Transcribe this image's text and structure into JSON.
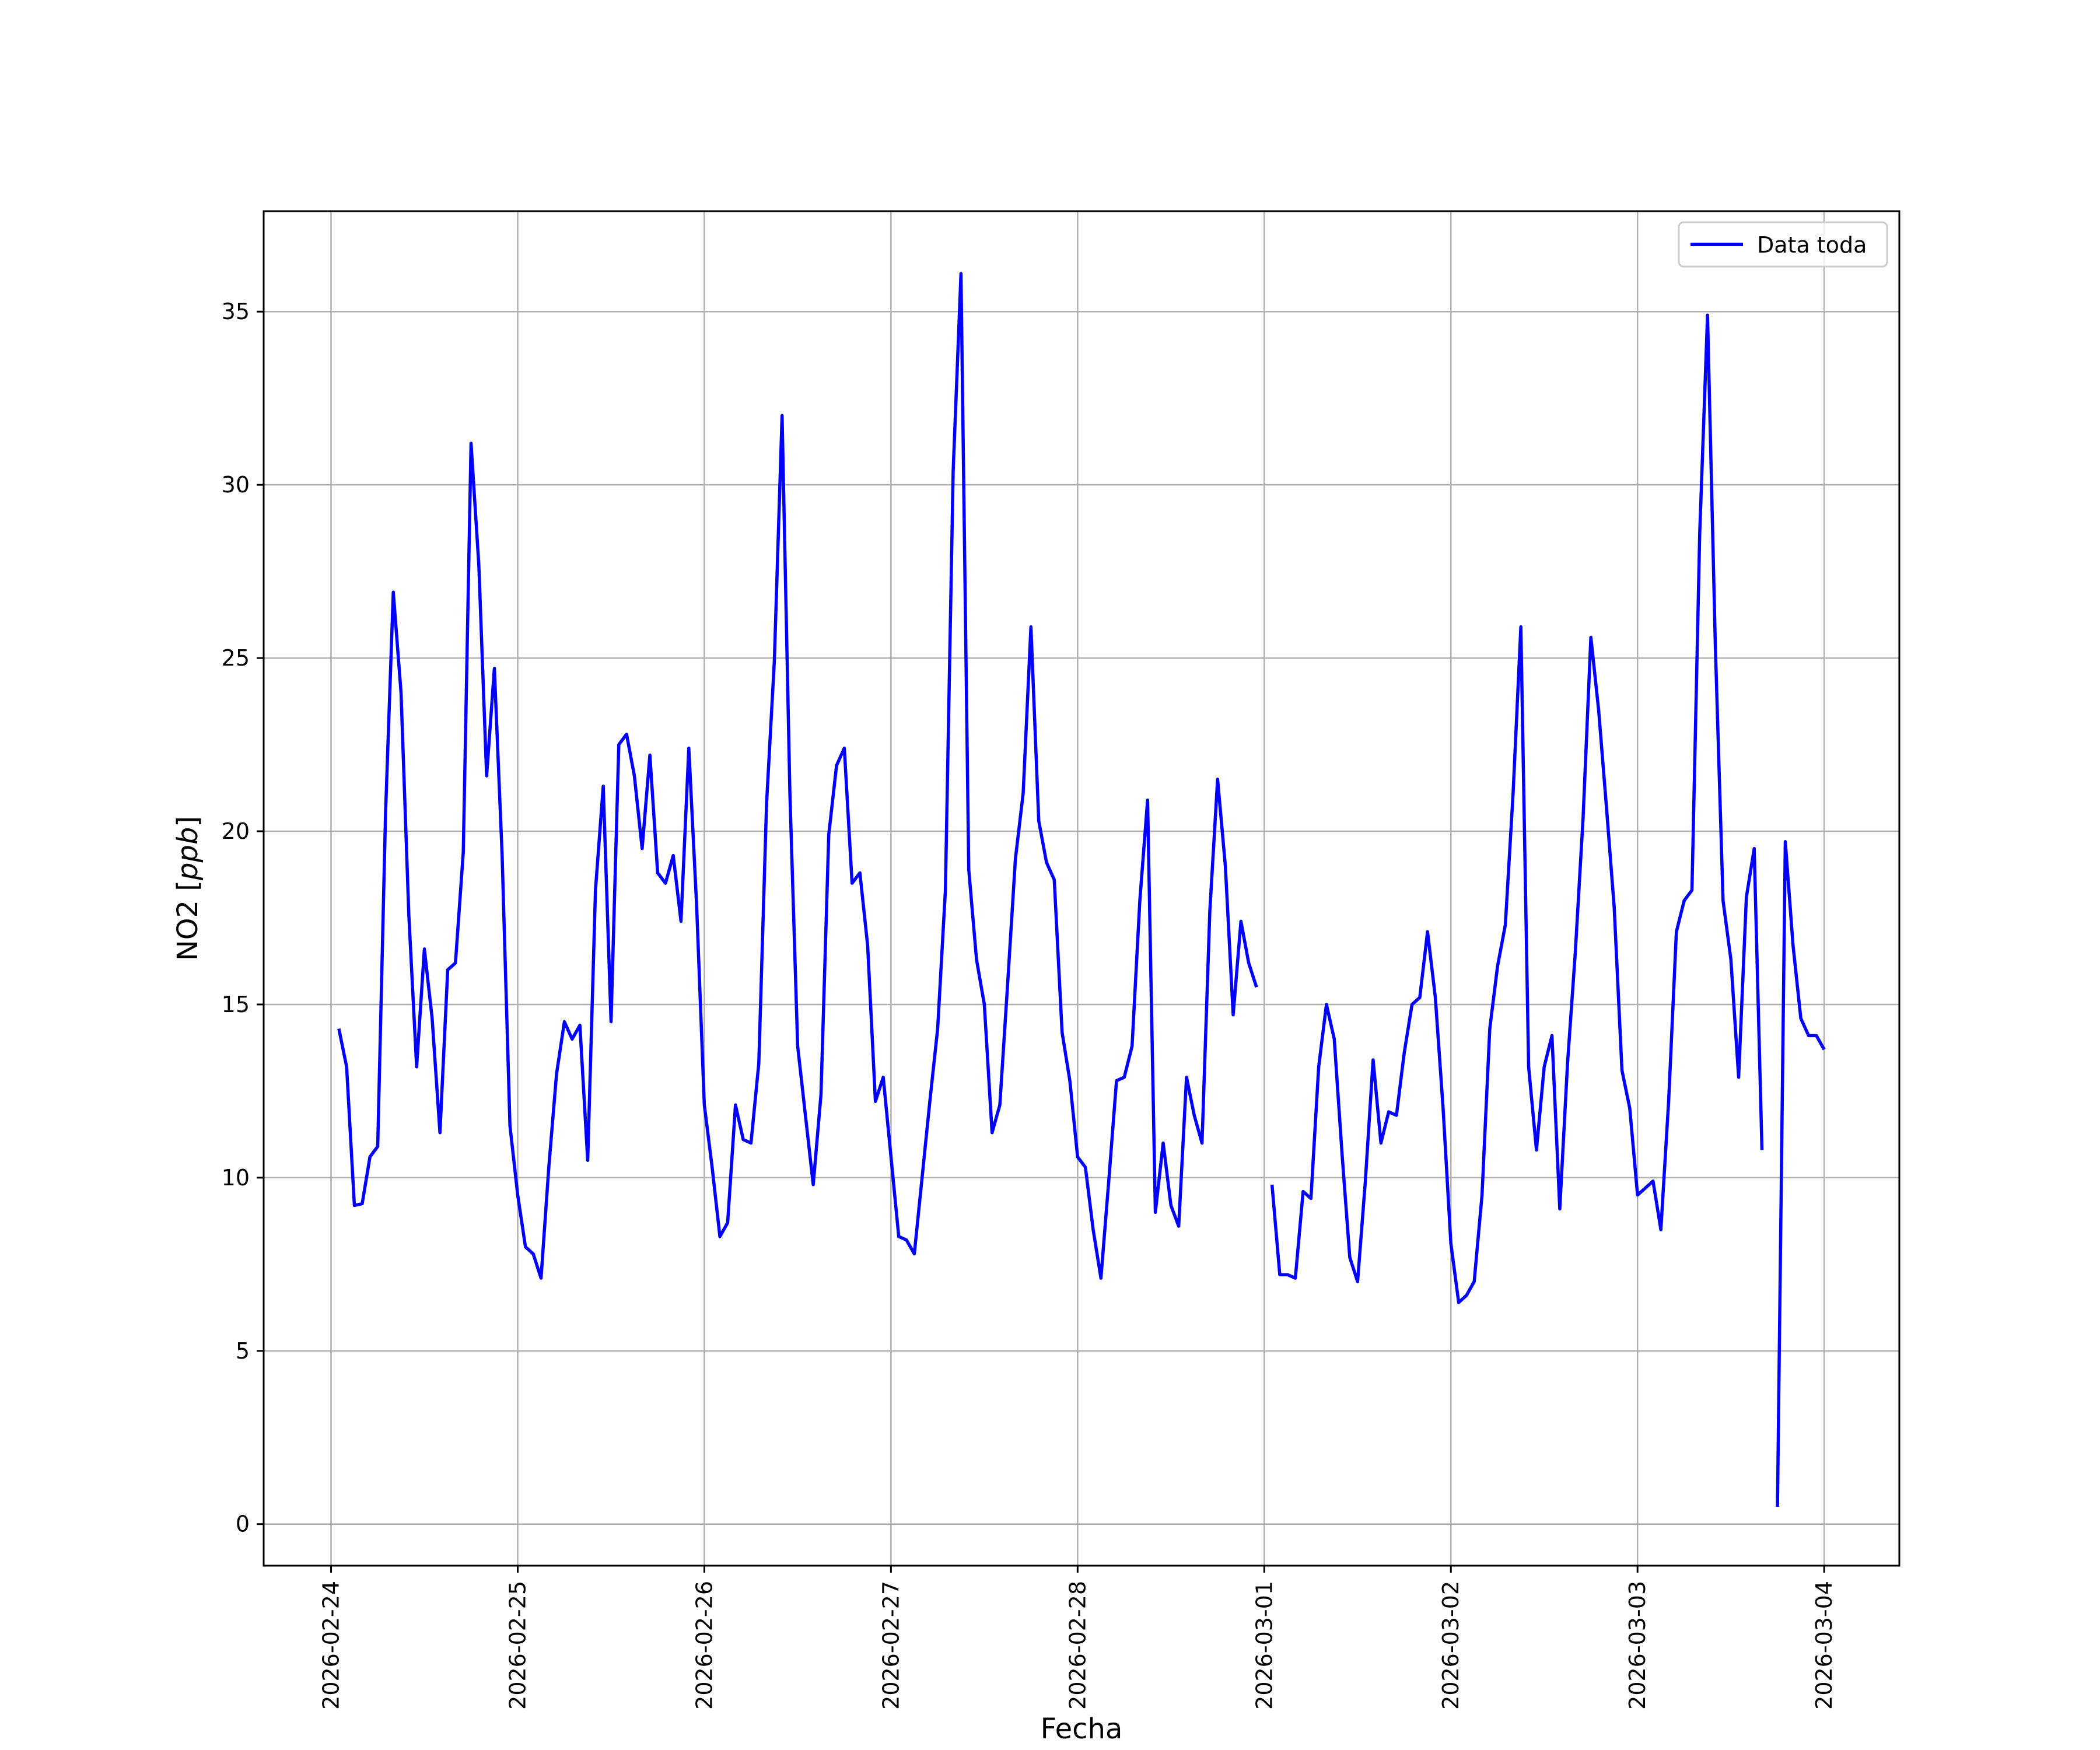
{
  "chart_data": {
    "type": "line",
    "title": "",
    "xlabel": "Fecha",
    "ylabel": "NO2 [ppb]",
    "ylabel_parts": {
      "plain": "NO2 [",
      "italic": "ppb",
      "close": "]"
    },
    "xlim": [
      "2026-02-23T15:20",
      "2026-03-04T09:40"
    ],
    "ylim": [
      -1.2,
      37.9
    ],
    "yticks": [
      0,
      5,
      10,
      15,
      20,
      25,
      30,
      35
    ],
    "xticks": [
      "2026-02-24",
      "2026-02-25",
      "2026-02-26",
      "2026-02-27",
      "2026-02-28",
      "2026-03-01",
      "2026-03-02",
      "2026-03-03",
      "2026-03-04"
    ],
    "grid": true,
    "legend_position": "top-right",
    "series": [
      {
        "name": "Data toda",
        "color": "#0000ff",
        "sampling": "hourly",
        "days": [
          {
            "date": "2026-02-24",
            "values": [
              null,
              14.3,
              13.2,
              9.2,
              9.25,
              10.6,
              10.9,
              20.5,
              26.9,
              24.0,
              17.6,
              13.2,
              16.6,
              14.6,
              11.3,
              16.0,
              16.2,
              19.4,
              31.2,
              27.7,
              21.6,
              24.7,
              19.3,
              11.5
            ]
          },
          {
            "date": "2026-02-25",
            "values": [
              9.5,
              8.0,
              7.8,
              7.1,
              10.3,
              13.0,
              14.5,
              14.0,
              14.4,
              10.5,
              18.3,
              21.3,
              14.5,
              22.5,
              22.8,
              21.6,
              19.5,
              22.2,
              18.8,
              18.5,
              19.3,
              17.4,
              22.4,
              17.9
            ]
          },
          {
            "date": "2026-02-26",
            "values": [
              12.1,
              10.3,
              8.3,
              8.7,
              12.1,
              11.1,
              11.0,
              13.3,
              20.8,
              24.9,
              32.0,
              21.1,
              13.8,
              11.8,
              9.8,
              12.4,
              19.9,
              21.9,
              22.4,
              18.5,
              18.8,
              16.7,
              12.2,
              12.9
            ]
          },
          {
            "date": "2026-02-27",
            "values": [
              10.6,
              8.3,
              8.2,
              7.8,
              10.0,
              12.2,
              14.3,
              18.3,
              30.4,
              36.1,
              18.9,
              16.3,
              15.0,
              11.3,
              12.1,
              15.6,
              19.2,
              21.1,
              25.9,
              20.3,
              19.1,
              18.6,
              14.2,
              12.8
            ]
          },
          {
            "date": "2026-02-28",
            "values": [
              10.6,
              10.3,
              8.5,
              7.1,
              9.9,
              12.8,
              12.9,
              13.8,
              18.0,
              20.9,
              9.0,
              11.0,
              9.2,
              8.6,
              12.9,
              11.8,
              11.0,
              17.7,
              21.5,
              19.0,
              14.7,
              17.4,
              16.2,
              15.5
            ]
          },
          {
            "date": "2026-03-01",
            "values": [
              null,
              9.8,
              7.2,
              7.2,
              7.1,
              9.6,
              9.4,
              13.2,
              15.0,
              14.0,
              10.7,
              7.7,
              7.0,
              9.9,
              13.4,
              11.0,
              11.9,
              11.8,
              13.6,
              15.0,
              15.2,
              17.1,
              15.2,
              12.0
            ]
          },
          {
            "date": "2026-03-02",
            "values": [
              8.1,
              6.4,
              6.6,
              7.0,
              9.5,
              14.3,
              16.1,
              17.3,
              21.1,
              25.9,
              13.2,
              10.8,
              13.2,
              14.1,
              9.1,
              13.3,
              16.5,
              20.4,
              25.6,
              23.5,
              20.7,
              17.8,
              13.1,
              12.0
            ]
          },
          {
            "date": "2026-03-03",
            "values": [
              9.5,
              9.7,
              9.9,
              8.5,
              12.2,
              17.1,
              18.0,
              18.3,
              28.6,
              34.9,
              25.4,
              18.0,
              16.3,
              12.9,
              18.1,
              19.5,
              10.8,
              null,
              0.5,
              19.7,
              16.7,
              14.6,
              14.1,
              14.1
            ]
          },
          {
            "date": "2026-03-04",
            "values": [
              13.7
            ]
          }
        ]
      }
    ]
  }
}
